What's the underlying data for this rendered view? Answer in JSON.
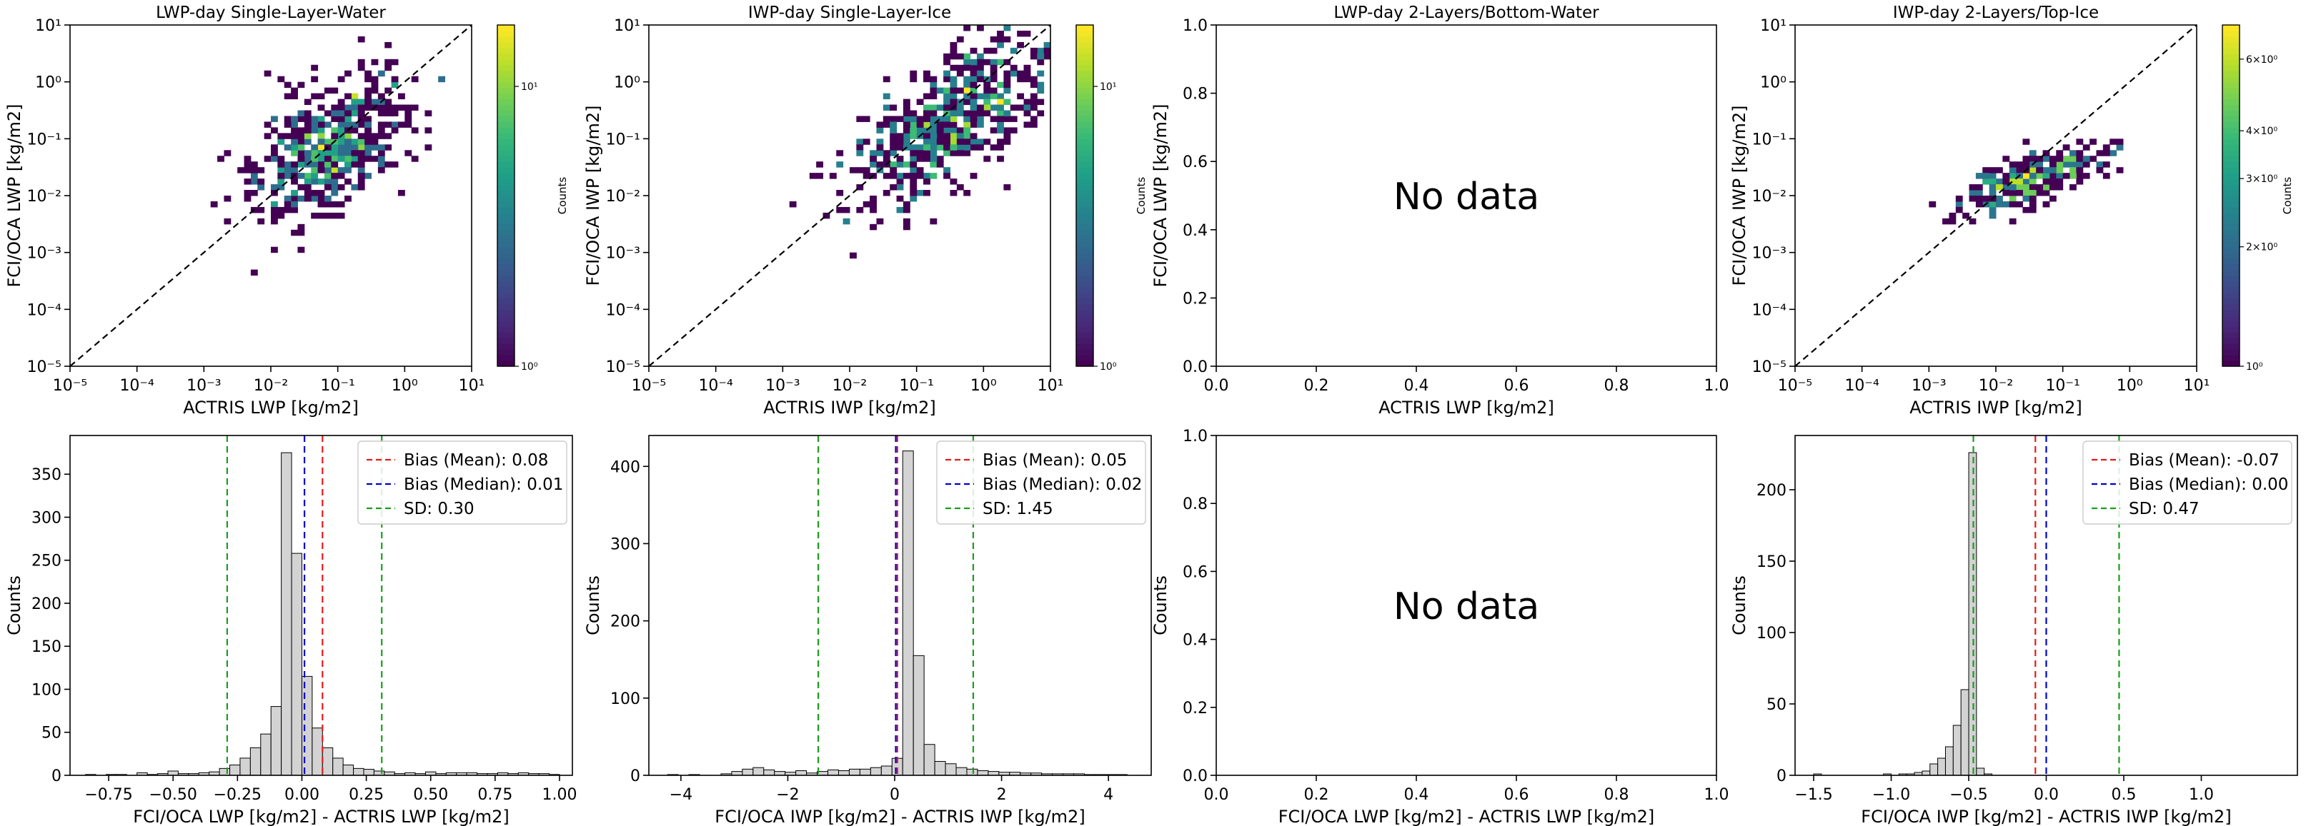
{
  "figure": {
    "no_data_text": "No data",
    "colorbar_label": "Counts"
  },
  "colormap": [
    "#440154",
    "#482878",
    "#3e4989",
    "#31688e",
    "#26828e",
    "#1f9e89",
    "#35b779",
    "#6ece58",
    "#b5de2b",
    "#fde725"
  ],
  "chart_data": [
    {
      "panel": "top-1",
      "type": "heatmap",
      "title": "LWP-day Single-Layer-Water",
      "xlabel": "ACTRIS LWP [kg/m2]",
      "ylabel": "FCI/OCA LWP [kg/m2]",
      "xscale": "log",
      "yscale": "log",
      "xlim": [
        1e-05,
        10
      ],
      "ylim": [
        1e-05,
        10
      ],
      "xticks": [
        "10⁻⁵",
        "10⁻⁴",
        "10⁻³",
        "10⁻²",
        "10⁻¹",
        "10⁰",
        "10¹"
      ],
      "yticks": [
        "10⁻⁵",
        "10⁻⁴",
        "10⁻³",
        "10⁻²",
        "10⁻¹",
        "10⁰",
        "10¹"
      ],
      "reference_line": "1:1 dashed",
      "colorbar": {
        "scale": "log",
        "ticks": [
          "10⁰",
          "10¹"
        ]
      },
      "density": {
        "centers": [
          [
            -1.3,
            -1.3,
            1.0
          ],
          [
            -1.0,
            -1.0,
            0.8
          ]
        ],
        "spread": [
          0.6,
          0.55
        ],
        "xrange": [
          -3.8,
          0.6
        ],
        "yrange": [
          -3.4,
          0.9
        ],
        "n": 520,
        "seed": 11
      }
    },
    {
      "panel": "top-2",
      "type": "heatmap",
      "title": "IWP-day Single-Layer-Ice",
      "xlabel": "ACTRIS IWP [kg/m2]",
      "ylabel": "FCI/OCA IWP [kg/m2]",
      "xscale": "log",
      "yscale": "log",
      "xlim": [
        1e-05,
        10
      ],
      "ylim": [
        1e-05,
        10
      ],
      "xticks": [
        "10⁻⁵",
        "10⁻⁴",
        "10⁻³",
        "10⁻²",
        "10⁻¹",
        "10⁰",
        "10¹"
      ],
      "yticks": [
        "10⁻⁵",
        "10⁻⁴",
        "10⁻³",
        "10⁻²",
        "10⁻¹",
        "10⁰",
        "10¹"
      ],
      "reference_line": "1:1 dashed",
      "colorbar": {
        "scale": "log",
        "ticks": [
          "10⁰",
          "10¹"
        ]
      },
      "density": {
        "centers": [
          [
            -0.8,
            -1.0,
            1.0
          ],
          [
            0.0,
            -0.3,
            0.9
          ]
        ],
        "spread": [
          0.7,
          0.55
        ],
        "xrange": [
          -3.9,
          1.0
        ],
        "yrange": [
          -3.3,
          1.0
        ],
        "n": 560,
        "seed": 23
      }
    },
    {
      "panel": "top-3",
      "type": "empty",
      "title": "LWP-day 2-Layers/Bottom-Water",
      "xlabel": "ACTRIS LWP [kg/m2]",
      "ylabel": "FCI/OCA LWP [kg/m2]",
      "xlim": [
        0,
        1
      ],
      "ylim": [
        0,
        1
      ],
      "xticks": [
        "0.0",
        "0.2",
        "0.4",
        "0.6",
        "0.8",
        "1.0"
      ],
      "yticks": [
        "0.0",
        "0.2",
        "0.4",
        "0.6",
        "0.8",
        "1.0"
      ]
    },
    {
      "panel": "top-4",
      "type": "heatmap",
      "title": "IWP-day 2-Layers/Top-Ice",
      "xlabel": "ACTRIS IWP [kg/m2]",
      "ylabel": "FCI/OCA IWP [kg/m2]",
      "xscale": "log",
      "yscale": "log",
      "xlim": [
        1e-05,
        10
      ],
      "ylim": [
        1e-05,
        10
      ],
      "xticks": [
        "10⁻⁵",
        "10⁻⁴",
        "10⁻³",
        "10⁻²",
        "10⁻¹",
        "10⁰",
        "10¹"
      ],
      "yticks": [
        "10⁻⁵",
        "10⁻⁴",
        "10⁻³",
        "10⁻²",
        "10⁻¹",
        "10⁰",
        "10¹"
      ],
      "reference_line": "1:1 dashed",
      "colorbar": {
        "scale": "log",
        "ticks": [
          "10⁰",
          "2×10⁰",
          "3×10⁰",
          "4×10⁰",
          "6×10⁰"
        ]
      },
      "density": {
        "centers": [
          [
            -1.8,
            -1.8,
            1.0
          ],
          [
            -1.3,
            -1.7,
            0.8
          ]
        ],
        "spread": [
          0.55,
          0.22
        ],
        "xrange": [
          -3.8,
          0.9
        ],
        "yrange": [
          -2.6,
          -1.0
        ],
        "n": 260,
        "seed": 37
      }
    },
    {
      "panel": "bottom-1",
      "type": "histogram",
      "xlabel": "FCI/OCA LWP [kg/m2] - ACTRIS LWP [kg/m2]",
      "ylabel": "Counts",
      "xlim": [
        -0.9,
        1.05
      ],
      "ylim": [
        0,
        395
      ],
      "xticks": [
        -0.75,
        -0.5,
        -0.25,
        0.0,
        0.25,
        0.5,
        0.75,
        1.0
      ],
      "xtick_labels": [
        "−0.75",
        "−0.50",
        "−0.25",
        "0.00",
        "0.25",
        "0.50",
        "0.75",
        "1.00"
      ],
      "yticks": [
        0,
        50,
        100,
        150,
        200,
        250,
        300,
        350
      ],
      "bin_edges_start": -0.84,
      "bin_width": 0.04,
      "counts": [
        1,
        0,
        1,
        1,
        0,
        3,
        1,
        2,
        5,
        2,
        2,
        3,
        4,
        8,
        12,
        20,
        32,
        48,
        80,
        375,
        258,
        115,
        55,
        32,
        20,
        12,
        8,
        7,
        5,
        4,
        2,
        3,
        2,
        4,
        2,
        3,
        3,
        3,
        2,
        2,
        3,
        2,
        3,
        2,
        2,
        1
      ],
      "bias_mean": 0.08,
      "bias_median": 0.01,
      "sd": 0.3,
      "legend": [
        "Bias (Mean): 0.08",
        "Bias (Median): 0.01",
        "SD: 0.30"
      ]
    },
    {
      "panel": "bottom-2",
      "type": "histogram",
      "xlabel": "FCI/OCA IWP [kg/m2] - ACTRIS IWP [kg/m2]",
      "ylabel": "Counts",
      "xlim": [
        -4.6,
        4.8
      ],
      "ylim": [
        0,
        440
      ],
      "xticks": [
        -4,
        -2,
        0,
        2,
        4
      ],
      "xtick_labels": [
        "−4",
        "−2",
        "0",
        "2",
        "4"
      ],
      "yticks": [
        0,
        100,
        200,
        300,
        400
      ],
      "bin_edges_start": -4.25,
      "bin_width": 0.2,
      "counts": [
        1,
        0,
        1,
        0,
        0,
        2,
        5,
        8,
        10,
        7,
        5,
        4,
        6,
        3,
        5,
        7,
        6,
        8,
        8,
        10,
        12,
        22,
        420,
        155,
        40,
        18,
        15,
        10,
        8,
        6,
        5,
        4,
        4,
        3,
        3,
        2,
        2,
        2,
        2,
        1,
        1,
        1,
        1
      ],
      "bias_mean": 0.05,
      "bias_median": 0.02,
      "sd": 1.45,
      "legend": [
        "Bias (Mean): 0.05",
        "Bias (Median): 0.02",
        "SD: 1.45"
      ]
    },
    {
      "panel": "bottom-3",
      "type": "empty",
      "xlabel": "FCI/OCA LWP [kg/m2] - ACTRIS LWP [kg/m2]",
      "ylabel": "Counts",
      "xlim": [
        0,
        1
      ],
      "ylim": [
        0,
        1
      ],
      "xticks": [
        "0.0",
        "0.2",
        "0.4",
        "0.6",
        "0.8",
        "1.0"
      ],
      "yticks": [
        "0.0",
        "0.2",
        "0.4",
        "0.6",
        "0.8",
        "1.0"
      ]
    },
    {
      "panel": "bottom-4",
      "type": "histogram",
      "xlabel": "FCI/OCA IWP [kg/m2] - ACTRIS IWP [kg/m2]",
      "ylabel": "Counts",
      "xlim": [
        -1.62,
        1.62
      ],
      "ylim": [
        0,
        238
      ],
      "xticks": [
        -1.5,
        -1.0,
        -0.5,
        0.0,
        0.5,
        1.0
      ],
      "xtick_labels": [
        "−1.5",
        "−1.0",
        "−0.5",
        "0.0",
        "0.5",
        "1.0"
      ],
      "yticks": [
        0,
        50,
        100,
        150,
        200
      ],
      "bin_edges_start": -1.5,
      "bin_width": 0.05,
      "counts": [
        1,
        0,
        0,
        0,
        0,
        0,
        0,
        0,
        0,
        1,
        0,
        1,
        1,
        2,
        3,
        8,
        12,
        20,
        35,
        60,
        226,
        5,
        1
      ],
      "bias_mean": -0.07,
      "bias_median": 0.0,
      "sd": 0.47,
      "legend": [
        "Bias (Mean): -0.07",
        "Bias (Median): 0.00",
        "SD: 0.47"
      ]
    }
  ]
}
